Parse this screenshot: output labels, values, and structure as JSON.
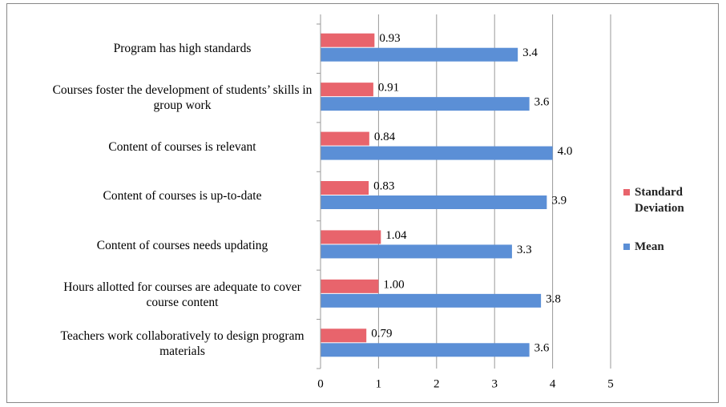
{
  "chart_data": {
    "type": "bar",
    "orientation": "horizontal",
    "categories": [
      "Program has high standards",
      "Courses foster the development of students’ skills in group work",
      "Content of courses is relevant",
      "Content of courses is up-to-date",
      "Content of courses needs updating",
      "Hours allotted for courses are adequate to cover course content",
      "Teachers work collaboratively to design program materials"
    ],
    "series": [
      {
        "name": "Standard Deviation",
        "color": "#e8646c",
        "values": [
          0.93,
          0.91,
          0.84,
          0.83,
          1.04,
          1.0,
          0.79
        ],
        "value_labels": [
          "0.93",
          "0.91",
          "0.84",
          "0.83",
          "1.04",
          "1.00",
          "0.79"
        ]
      },
      {
        "name": "Mean",
        "color": "#5b8fd6",
        "values": [
          3.4,
          3.6,
          4.0,
          3.9,
          3.3,
          3.8,
          3.6
        ],
        "value_labels": [
          "3.4",
          "3.6",
          "4.0",
          "3.9",
          "3.3",
          "3.8",
          "3.6"
        ]
      }
    ],
    "xlim": [
      0,
      5
    ],
    "xticks": [
      0,
      1,
      2,
      3,
      4,
      5
    ],
    "grid": true,
    "legend": "right"
  }
}
